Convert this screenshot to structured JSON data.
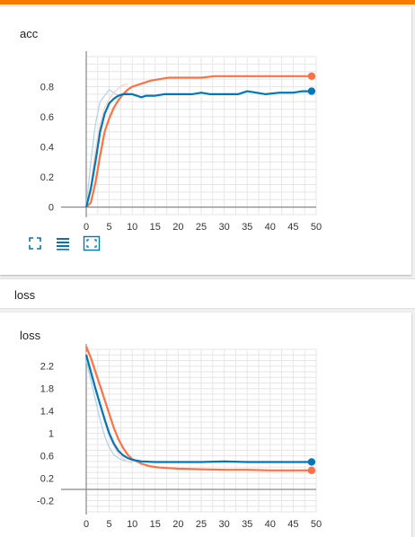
{
  "section": {
    "title": "loss"
  },
  "colors": {
    "accent": "#f57c00",
    "blue": "#0077bb",
    "orange": "#ff7043",
    "blue_light": "#b3d4ea",
    "orange_light": "#ffd2c2"
  },
  "toolbar": {
    "icons": [
      "fullscreen-icon",
      "list-icon",
      "fit-domain-icon"
    ]
  },
  "chart_data": [
    {
      "type": "line",
      "title": "acc",
      "xlim": [
        0,
        50
      ],
      "ylim": [
        -0.05,
        1.0
      ],
      "x_ticks": [
        "0",
        "5",
        "10",
        "15",
        "20",
        "25",
        "30",
        "35",
        "40",
        "45",
        "50"
      ],
      "y_ticks": [
        "0",
        "0.2",
        "0.4",
        "0.6",
        "0.8"
      ],
      "series": [
        {
          "color": "#ff7043",
          "values": [
            [
              0,
              0
            ],
            [
              1,
              0.03
            ],
            [
              2,
              0.16
            ],
            [
              3,
              0.34
            ],
            [
              4,
              0.5
            ],
            [
              5,
              0.59
            ],
            [
              6,
              0.66
            ],
            [
              7,
              0.71
            ],
            [
              8,
              0.75
            ],
            [
              9,
              0.78
            ],
            [
              10,
              0.8
            ],
            [
              12,
              0.82
            ],
            [
              14,
              0.84
            ],
            [
              16,
              0.85
            ],
            [
              18,
              0.86
            ],
            [
              20,
              0.86
            ],
            [
              22,
              0.86
            ],
            [
              25,
              0.86
            ],
            [
              28,
              0.87
            ],
            [
              31,
              0.87
            ],
            [
              34,
              0.87
            ],
            [
              37,
              0.87
            ],
            [
              40,
              0.87
            ],
            [
              43,
              0.87
            ],
            [
              46,
              0.87
            ],
            [
              49,
              0.87
            ]
          ]
        },
        {
          "color": "#0077bb",
          "values": [
            [
              0,
              0
            ],
            [
              1,
              0.12
            ],
            [
              2,
              0.3
            ],
            [
              3,
              0.5
            ],
            [
              4,
              0.62
            ],
            [
              5,
              0.69
            ],
            [
              6,
              0.72
            ],
            [
              7,
              0.74
            ],
            [
              8,
              0.75
            ],
            [
              9,
              0.75
            ],
            [
              10,
              0.75
            ],
            [
              11,
              0.74
            ],
            [
              12,
              0.73
            ],
            [
              13,
              0.74
            ],
            [
              15,
              0.74
            ],
            [
              17,
              0.75
            ],
            [
              20,
              0.75
            ],
            [
              23,
              0.75
            ],
            [
              25,
              0.76
            ],
            [
              27,
              0.75
            ],
            [
              30,
              0.75
            ],
            [
              33,
              0.75
            ],
            [
              35,
              0.77
            ],
            [
              37,
              0.76
            ],
            [
              39,
              0.75
            ],
            [
              42,
              0.76
            ],
            [
              45,
              0.76
            ],
            [
              47,
              0.77
            ],
            [
              49,
              0.77
            ]
          ]
        },
        {
          "color": "#b3d4ea",
          "values": [
            [
              0,
              0
            ],
            [
              1,
              0.3
            ],
            [
              2,
              0.55
            ],
            [
              3,
              0.7
            ],
            [
              4,
              0.74
            ],
            [
              5,
              0.78
            ],
            [
              6,
              0.76
            ],
            [
              7,
              0.74
            ],
            [
              8,
              0.75
            ],
            [
              9,
              0.76
            ]
          ]
        },
        {
          "color": "#ffd2c2",
          "values": [
            [
              0,
              0
            ],
            [
              1,
              0.15
            ],
            [
              2,
              0.38
            ],
            [
              3,
              0.55
            ],
            [
              4,
              0.66
            ],
            [
              5,
              0.72
            ],
            [
              6,
              0.76
            ],
            [
              7,
              0.79
            ],
            [
              8,
              0.81
            ],
            [
              9,
              0.82
            ]
          ]
        }
      ]
    },
    {
      "type": "line",
      "title": "loss",
      "xlim": [
        0,
        50
      ],
      "ylim": [
        -0.4,
        2.5
      ],
      "x_ticks": [
        "0",
        "5",
        "10",
        "15",
        "20",
        "25",
        "30",
        "35",
        "40",
        "45",
        "50"
      ],
      "y_ticks": [
        "2.2",
        "1.8",
        "1.4",
        "1",
        "0.6",
        "0.2",
        "-0.2"
      ],
      "series": [
        {
          "color": "#ff7043",
          "values": [
            [
              0,
              2.55
            ],
            [
              1,
              2.35
            ],
            [
              2,
              2.1
            ],
            [
              3,
              1.85
            ],
            [
              4,
              1.6
            ],
            [
              5,
              1.35
            ],
            [
              6,
              1.1
            ],
            [
              7,
              0.9
            ],
            [
              8,
              0.74
            ],
            [
              9,
              0.62
            ],
            [
              10,
              0.54
            ],
            [
              12,
              0.46
            ],
            [
              14,
              0.41
            ],
            [
              16,
              0.39
            ],
            [
              18,
              0.38
            ],
            [
              20,
              0.37
            ],
            [
              25,
              0.36
            ],
            [
              30,
              0.35
            ],
            [
              35,
              0.35
            ],
            [
              40,
              0.34
            ],
            [
              45,
              0.34
            ],
            [
              49,
              0.34
            ]
          ]
        },
        {
          "color": "#0077bb",
          "values": [
            [
              0,
              2.4
            ],
            [
              1,
              2.1
            ],
            [
              2,
              1.8
            ],
            [
              3,
              1.52
            ],
            [
              4,
              1.25
            ],
            [
              5,
              1.0
            ],
            [
              6,
              0.82
            ],
            [
              7,
              0.69
            ],
            [
              8,
              0.61
            ],
            [
              9,
              0.56
            ],
            [
              10,
              0.53
            ],
            [
              12,
              0.5
            ],
            [
              15,
              0.49
            ],
            [
              20,
              0.49
            ],
            [
              25,
              0.49
            ],
            [
              30,
              0.5
            ],
            [
              35,
              0.49
            ],
            [
              40,
              0.49
            ],
            [
              45,
              0.49
            ],
            [
              49,
              0.49
            ]
          ]
        },
        {
          "color": "#b3d4ea",
          "values": [
            [
              0,
              2.3
            ],
            [
              1,
              1.95
            ],
            [
              2,
              1.6
            ],
            [
              3,
              1.25
            ],
            [
              4,
              0.95
            ],
            [
              5,
              0.75
            ],
            [
              6,
              0.62
            ],
            [
              7,
              0.56
            ],
            [
              8,
              0.52
            ],
            [
              9,
              0.5
            ],
            [
              10,
              0.49
            ]
          ]
        },
        {
          "color": "#ffd2c2",
          "values": [
            [
              0,
              2.45
            ],
            [
              1,
              2.15
            ],
            [
              2,
              1.85
            ],
            [
              3,
              1.5
            ],
            [
              4,
              1.2
            ],
            [
              5,
              0.95
            ],
            [
              6,
              0.77
            ],
            [
              7,
              0.64
            ],
            [
              8,
              0.55
            ],
            [
              9,
              0.5
            ],
            [
              10,
              0.47
            ]
          ]
        }
      ]
    }
  ]
}
